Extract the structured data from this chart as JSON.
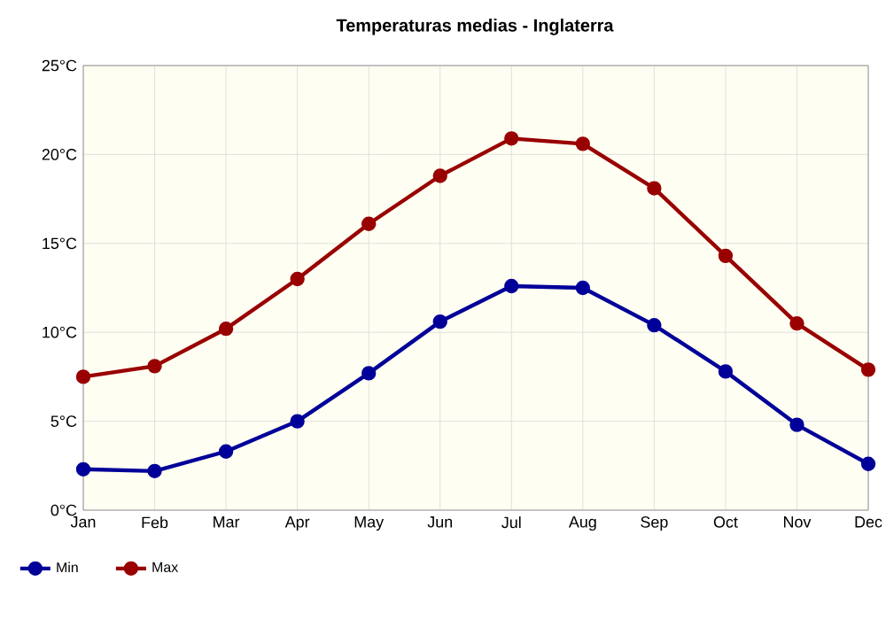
{
  "chart_data": {
    "type": "line",
    "title": "Temperaturas medias - Inglaterra",
    "categories": [
      "Jan",
      "Feb",
      "Mar",
      "Apr",
      "May",
      "Jun",
      "Jul",
      "Aug",
      "Sep",
      "Oct",
      "Nov",
      "Dec"
    ],
    "series": [
      {
        "name": "Min",
        "color": "#000099",
        "values": [
          2.3,
          2.2,
          3.3,
          5.0,
          7.7,
          10.6,
          12.6,
          12.5,
          10.4,
          7.8,
          4.8,
          2.6
        ]
      },
      {
        "name": "Max",
        "color": "#990000",
        "values": [
          7.5,
          8.1,
          10.2,
          13.0,
          16.1,
          18.8,
          20.9,
          20.6,
          18.1,
          14.3,
          10.5,
          7.9
        ]
      }
    ],
    "ylim": [
      0,
      25
    ],
    "yticks": [
      {
        "value": 0,
        "label": "0°C"
      },
      {
        "value": 5,
        "label": "5°C"
      },
      {
        "value": 10,
        "label": "10°C"
      },
      {
        "value": 15,
        "label": "15°C"
      },
      {
        "value": 20,
        "label": "20°C"
      },
      {
        "value": 25,
        "label": "25°C"
      }
    ],
    "grid": true,
    "legend": "bottom",
    "marker": "circle"
  }
}
